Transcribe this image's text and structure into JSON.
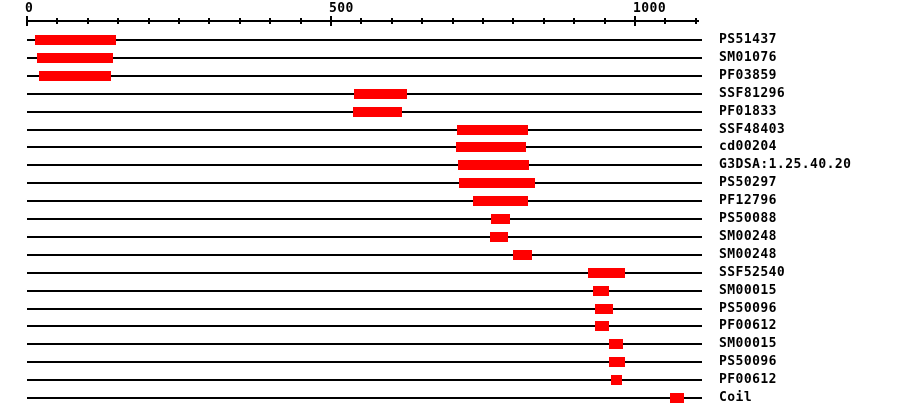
{
  "chart_data": {
    "type": "bar",
    "subtype": "horizontal-range-domain-architecture",
    "title": "",
    "xlabel": "",
    "ylabel": "",
    "grid": false,
    "legend": false,
    "bar_color": "#ff0000",
    "line_color": "#000000",
    "x_axis": {
      "min": 0,
      "max": 1105,
      "tick_interval": 50,
      "labeled_ticks": [
        {
          "value": 0,
          "label": "0"
        },
        {
          "value": 500,
          "label": "500"
        },
        {
          "value": 1000,
          "label": "1000"
        }
      ]
    },
    "rows": [
      {
        "label": "PS51437",
        "start": 13,
        "end": 146
      },
      {
        "label": "SM01076",
        "start": 16,
        "end": 141
      },
      {
        "label": "PF03859",
        "start": 19,
        "end": 138
      },
      {
        "label": "SSF81296",
        "start": 538,
        "end": 625
      },
      {
        "label": "PF01833",
        "start": 536,
        "end": 617
      },
      {
        "label": "SSF48403",
        "start": 707,
        "end": 824
      },
      {
        "label": "cd00204",
        "start": 705,
        "end": 821
      },
      {
        "label": "G3DSA:1.25.40.20",
        "start": 709,
        "end": 826
      },
      {
        "label": "PS50297",
        "start": 711,
        "end": 836
      },
      {
        "label": "PF12796",
        "start": 734,
        "end": 824
      },
      {
        "label": "PS50088",
        "start": 763,
        "end": 795
      },
      {
        "label": "SM00248",
        "start": 762,
        "end": 791
      },
      {
        "label": "SM00248",
        "start": 800,
        "end": 831
      },
      {
        "label": "SSF52540",
        "start": 923,
        "end": 984
      },
      {
        "label": "SM00015",
        "start": 931,
        "end": 958
      },
      {
        "label": "PS50096",
        "start": 935,
        "end": 964
      },
      {
        "label": "PF00612",
        "start": 935,
        "end": 958
      },
      {
        "label": "SM00015",
        "start": 958,
        "end": 981
      },
      {
        "label": "PS50096",
        "start": 958,
        "end": 984
      },
      {
        "label": "PF00612",
        "start": 961,
        "end": 979
      },
      {
        "label": "Coil",
        "start": 1058,
        "end": 1081
      }
    ]
  }
}
